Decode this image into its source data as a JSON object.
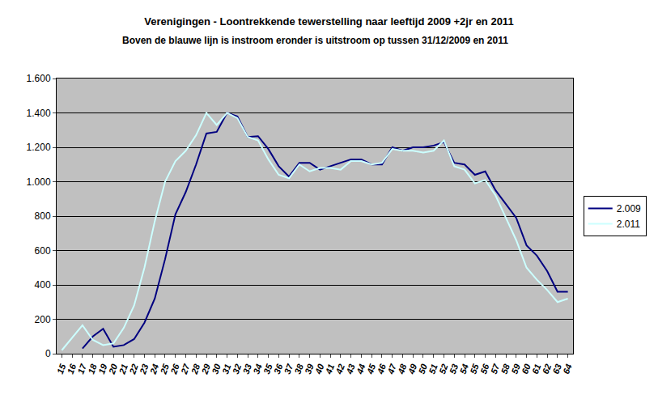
{
  "chart_data": {
    "type": "line",
    "title": "Verenigingen - Loontrekkende tewerstelling naar leeftijd 2009 +2jr en 2011",
    "subtitle": "Boven de blauwe lijn is instroom eronder is uitstroom op tussen 31/12/2009 en 2011",
    "categories": [
      "15",
      "16",
      "17",
      "18",
      "19",
      "20",
      "21",
      "22",
      "23",
      "24",
      "25",
      "26",
      "27",
      "28",
      "29",
      "30",
      "31",
      "32",
      "33",
      "34",
      "35",
      "36",
      "37",
      "38",
      "39",
      "40",
      "41",
      "42",
      "43",
      "44",
      "45",
      "46",
      "47",
      "48",
      "49",
      "50",
      "51",
      "52",
      "53",
      "54",
      "55",
      "56",
      "57",
      "58",
      "59",
      "60",
      "61",
      "62",
      "63",
      "64"
    ],
    "series": [
      {
        "name": "2.009",
        "color": "#000080",
        "values": [
          null,
          null,
          30,
          100,
          145,
          40,
          50,
          85,
          180,
          320,
          550,
          810,
          940,
          1100,
          1280,
          1290,
          1400,
          1380,
          1260,
          1265,
          1190,
          1090,
          1030,
          1110,
          1110,
          1070,
          1090,
          1110,
          1130,
          1130,
          1100,
          1100,
          1200,
          1180,
          1200,
          1200,
          1210,
          1230,
          1110,
          1100,
          1040,
          1060,
          950,
          870,
          790,
          630,
          570,
          480,
          360,
          360
        ]
      },
      {
        "name": "2.011",
        "color": "#ccffff",
        "values": [
          20,
          90,
          165,
          80,
          50,
          60,
          150,
          280,
          500,
          770,
          1000,
          1120,
          1180,
          1270,
          1400,
          1330,
          1400,
          1370,
          1260,
          1240,
          1130,
          1040,
          1020,
          1100,
          1060,
          1080,
          1080,
          1070,
          1120,
          1120,
          1100,
          1110,
          1190,
          1180,
          1180,
          1170,
          1180,
          1240,
          1090,
          1070,
          990,
          1010,
          920,
          790,
          660,
          500,
          430,
          370,
          300,
          320
        ]
      }
    ],
    "ylim": [
      0,
      1600
    ],
    "yticks": [
      0,
      200,
      400,
      600,
      800,
      {
        "value": 1000,
        "label": "1.000"
      },
      {
        "value": 1200,
        "label": "1.200"
      },
      {
        "value": 1400,
        "label": "1.400"
      },
      {
        "value": 1600,
        "label": "1.600"
      }
    ],
    "grid": true,
    "legend": "right"
  }
}
